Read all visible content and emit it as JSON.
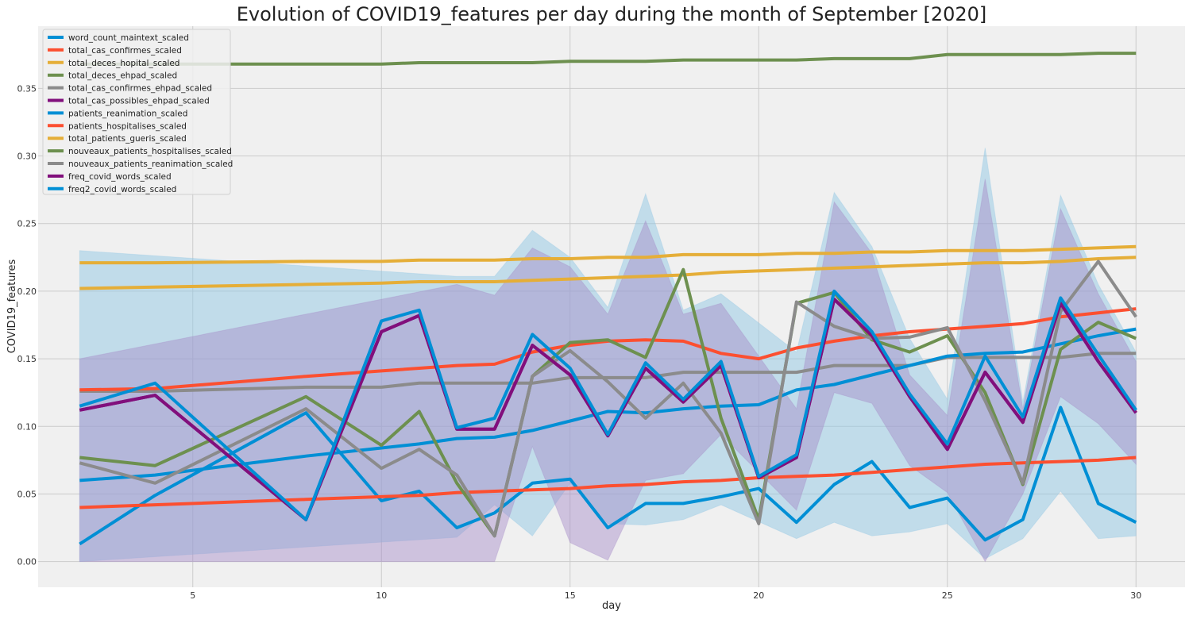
{
  "chart_data": {
    "type": "line",
    "title": "Evolution of COVID19_features per day during the month of September [2020]",
    "xlabel": "day",
    "ylabel": "COVID19_features",
    "xlim": [
      0.9,
      31.3
    ],
    "ylim": [
      -0.019,
      0.396
    ],
    "xticks": [
      5,
      10,
      15,
      20,
      25,
      30
    ],
    "yticks": [
      0.0,
      0.05,
      0.1,
      0.15,
      0.2,
      0.25,
      0.3,
      0.35
    ],
    "ytick_labels": [
      "0.00",
      "0.05",
      "0.10",
      "0.15",
      "0.20",
      "0.25",
      "0.30",
      "0.35"
    ],
    "grid": true,
    "legend_position": "top-left",
    "background": "#f0f0f0",
    "bands": [
      {
        "series": "freq2_covid_words_scaled",
        "color": "#91c8e3",
        "opacity": 0.5,
        "x": [
          2,
          12,
          13,
          14,
          15,
          16,
          17,
          18,
          19,
          21,
          22,
          23,
          24,
          25,
          26,
          27,
          28,
          29,
          30
        ],
        "upper": [
          0.23,
          0.211,
          0.211,
          0.245,
          0.225,
          0.188,
          0.272,
          0.186,
          0.198,
          0.155,
          0.273,
          0.233,
          0.165,
          0.12,
          0.306,
          0.118,
          0.271,
          0.205,
          0.155
        ],
        "lower": [
          0.0,
          0.018,
          0.042,
          0.019,
          0.058,
          0.028,
          0.027,
          0.031,
          0.042,
          0.017,
          0.029,
          0.019,
          0.022,
          0.028,
          0.002,
          0.017,
          0.052,
          0.017,
          0.019
        ]
      },
      {
        "series": "freq_covid_words_scaled",
        "color": "#a48ac8",
        "opacity": 0.45,
        "x": [
          2,
          12,
          13,
          14,
          15,
          16,
          17,
          18,
          19,
          21,
          22,
          23,
          24,
          25,
          26,
          27,
          28,
          29,
          30
        ],
        "upper": [
          0.15,
          0.205,
          0.197,
          0.232,
          0.218,
          0.183,
          0.252,
          0.183,
          0.191,
          0.113,
          0.266,
          0.228,
          0.138,
          0.108,
          0.283,
          0.113,
          0.261,
          0.198,
          0.148
        ],
        "lower": [
          0.0,
          0.0,
          0.0,
          0.085,
          0.014,
          0.001,
          0.06,
          0.065,
          0.094,
          0.038,
          0.125,
          0.117,
          0.071,
          0.051,
          0.0,
          0.05,
          0.122,
          0.102,
          0.072
        ]
      }
    ],
    "x": [
      2,
      4,
      8,
      10,
      11,
      12,
      13,
      14,
      15,
      16,
      17,
      18,
      19,
      20,
      21,
      22,
      23,
      24,
      25,
      26,
      27,
      28,
      29,
      30
    ],
    "series": [
      {
        "name": "word_count_maintext_scaled",
        "color": "#008fd5",
        "values": [
          0.013,
          0.049,
          0.11,
          0.045,
          0.052,
          0.025,
          0.036,
          0.058,
          0.061,
          0.025,
          0.043,
          0.043,
          0.048,
          0.054,
          0.029,
          0.057,
          0.074,
          0.04,
          0.047,
          0.016,
          0.031,
          0.114,
          0.043,
          0.029
        ]
      },
      {
        "name": "total_cas_confirmes_scaled",
        "color": "#fc4f30",
        "values": [
          0.04,
          0.042,
          0.046,
          0.048,
          0.049,
          0.051,
          0.052,
          0.053,
          0.054,
          0.056,
          0.057,
          0.059,
          0.06,
          0.062,
          0.063,
          0.064,
          0.066,
          0.068,
          0.07,
          0.072,
          0.073,
          0.074,
          0.075,
          0.077
        ]
      },
      {
        "name": "total_deces_hopital_scaled",
        "color": "#e5ae38",
        "values": [
          0.202,
          0.203,
          0.205,
          0.206,
          0.207,
          0.207,
          0.207,
          0.208,
          0.209,
          0.21,
          0.211,
          0.212,
          0.214,
          0.215,
          0.216,
          0.217,
          0.218,
          0.219,
          0.22,
          0.221,
          0.221,
          0.222,
          0.224,
          0.225
        ]
      },
      {
        "name": "total_deces_ehpad_scaled",
        "color": "#6d904f",
        "values": [
          0.368,
          0.368,
          0.368,
          0.368,
          0.369,
          0.369,
          0.369,
          0.369,
          0.37,
          0.37,
          0.37,
          0.371,
          0.371,
          0.371,
          0.371,
          0.372,
          0.372,
          0.372,
          0.375,
          0.375,
          0.375,
          0.375,
          0.376,
          0.376
        ]
      },
      {
        "name": "total_cas_confirmes_ehpad_scaled",
        "color": "#8b8b8b",
        "values": [
          0.126,
          0.126,
          0.129,
          0.129,
          0.132,
          0.132,
          0.132,
          0.132,
          0.136,
          0.136,
          0.136,
          0.14,
          0.14,
          0.14,
          0.14,
          0.145,
          0.145,
          0.145,
          0.151,
          0.151,
          0.151,
          0.151,
          0.154,
          0.154
        ]
      },
      {
        "name": "total_cas_possibles_ehpad_scaled",
        "color": "#810f7c",
        "values": [
          0.112,
          0.123,
          0.031,
          0.17,
          0.182,
          0.098,
          0.098,
          0.16,
          0.138,
          0.093,
          0.143,
          0.118,
          0.145,
          0.062,
          0.077,
          0.194,
          0.167,
          0.122,
          0.083,
          0.14,
          0.103,
          0.191,
          0.148,
          0.11
        ]
      },
      {
        "name": "patients_reanimation_scaled",
        "color": "#008fd5",
        "values": [
          0.06,
          0.064,
          0.078,
          0.084,
          0.087,
          0.091,
          0.092,
          0.097,
          0.104,
          0.111,
          0.11,
          0.113,
          0.115,
          0.116,
          0.127,
          0.131,
          0.138,
          0.145,
          0.152,
          0.154,
          0.155,
          0.161,
          0.167,
          0.172
        ]
      },
      {
        "name": "patients_hospitalises_scaled",
        "color": "#fc4f30",
        "values": [
          0.127,
          0.128,
          0.137,
          0.141,
          0.143,
          0.145,
          0.146,
          0.155,
          0.16,
          0.163,
          0.164,
          0.163,
          0.154,
          0.15,
          0.158,
          0.163,
          0.167,
          0.17,
          0.172,
          0.174,
          0.176,
          0.181,
          0.184,
          0.187
        ]
      },
      {
        "name": "total_patients_gueris_scaled",
        "color": "#e5ae38",
        "values": [
          0.221,
          0.221,
          0.222,
          0.222,
          0.223,
          0.223,
          0.223,
          0.224,
          0.224,
          0.225,
          0.225,
          0.227,
          0.227,
          0.227,
          0.228,
          0.228,
          0.229,
          0.229,
          0.23,
          0.23,
          0.23,
          0.231,
          0.232,
          0.233
        ]
      },
      {
        "name": "nouveaux_patients_hospitalises_scaled",
        "color": "#6d904f",
        "values": [
          0.077,
          0.071,
          0.122,
          0.086,
          0.111,
          0.058,
          0.019,
          0.137,
          0.162,
          0.164,
          0.151,
          0.216,
          0.106,
          0.031,
          0.191,
          0.199,
          0.164,
          0.155,
          0.167,
          0.125,
          0.057,
          0.157,
          0.177,
          0.165
        ]
      },
      {
        "name": "nouveaux_patients_reanimation_scaled",
        "color": "#8b8b8b",
        "values": [
          0.073,
          0.058,
          0.113,
          0.069,
          0.083,
          0.064,
          0.019,
          0.137,
          0.156,
          0.133,
          0.106,
          0.132,
          0.095,
          0.028,
          0.192,
          0.174,
          0.165,
          0.166,
          0.173,
          0.119,
          0.058,
          0.185,
          0.222,
          0.181
        ]
      },
      {
        "name": "freq_covid_words_scaled",
        "color": "#810f7c",
        "values": [
          0.112,
          0.123,
          0.031,
          0.17,
          0.182,
          0.098,
          0.098,
          0.16,
          0.138,
          0.093,
          0.143,
          0.118,
          0.145,
          0.062,
          0.077,
          0.194,
          0.167,
          0.122,
          0.083,
          0.14,
          0.103,
          0.191,
          0.148,
          0.11
        ]
      },
      {
        "name": "freq2_covid_words_scaled",
        "color": "#008fd5",
        "values": [
          0.115,
          0.132,
          0.031,
          0.178,
          0.186,
          0.099,
          0.106,
          0.168,
          0.143,
          0.094,
          0.147,
          0.12,
          0.148,
          0.063,
          0.079,
          0.2,
          0.17,
          0.124,
          0.087,
          0.152,
          0.107,
          0.195,
          0.153,
          0.112
        ]
      }
    ]
  }
}
